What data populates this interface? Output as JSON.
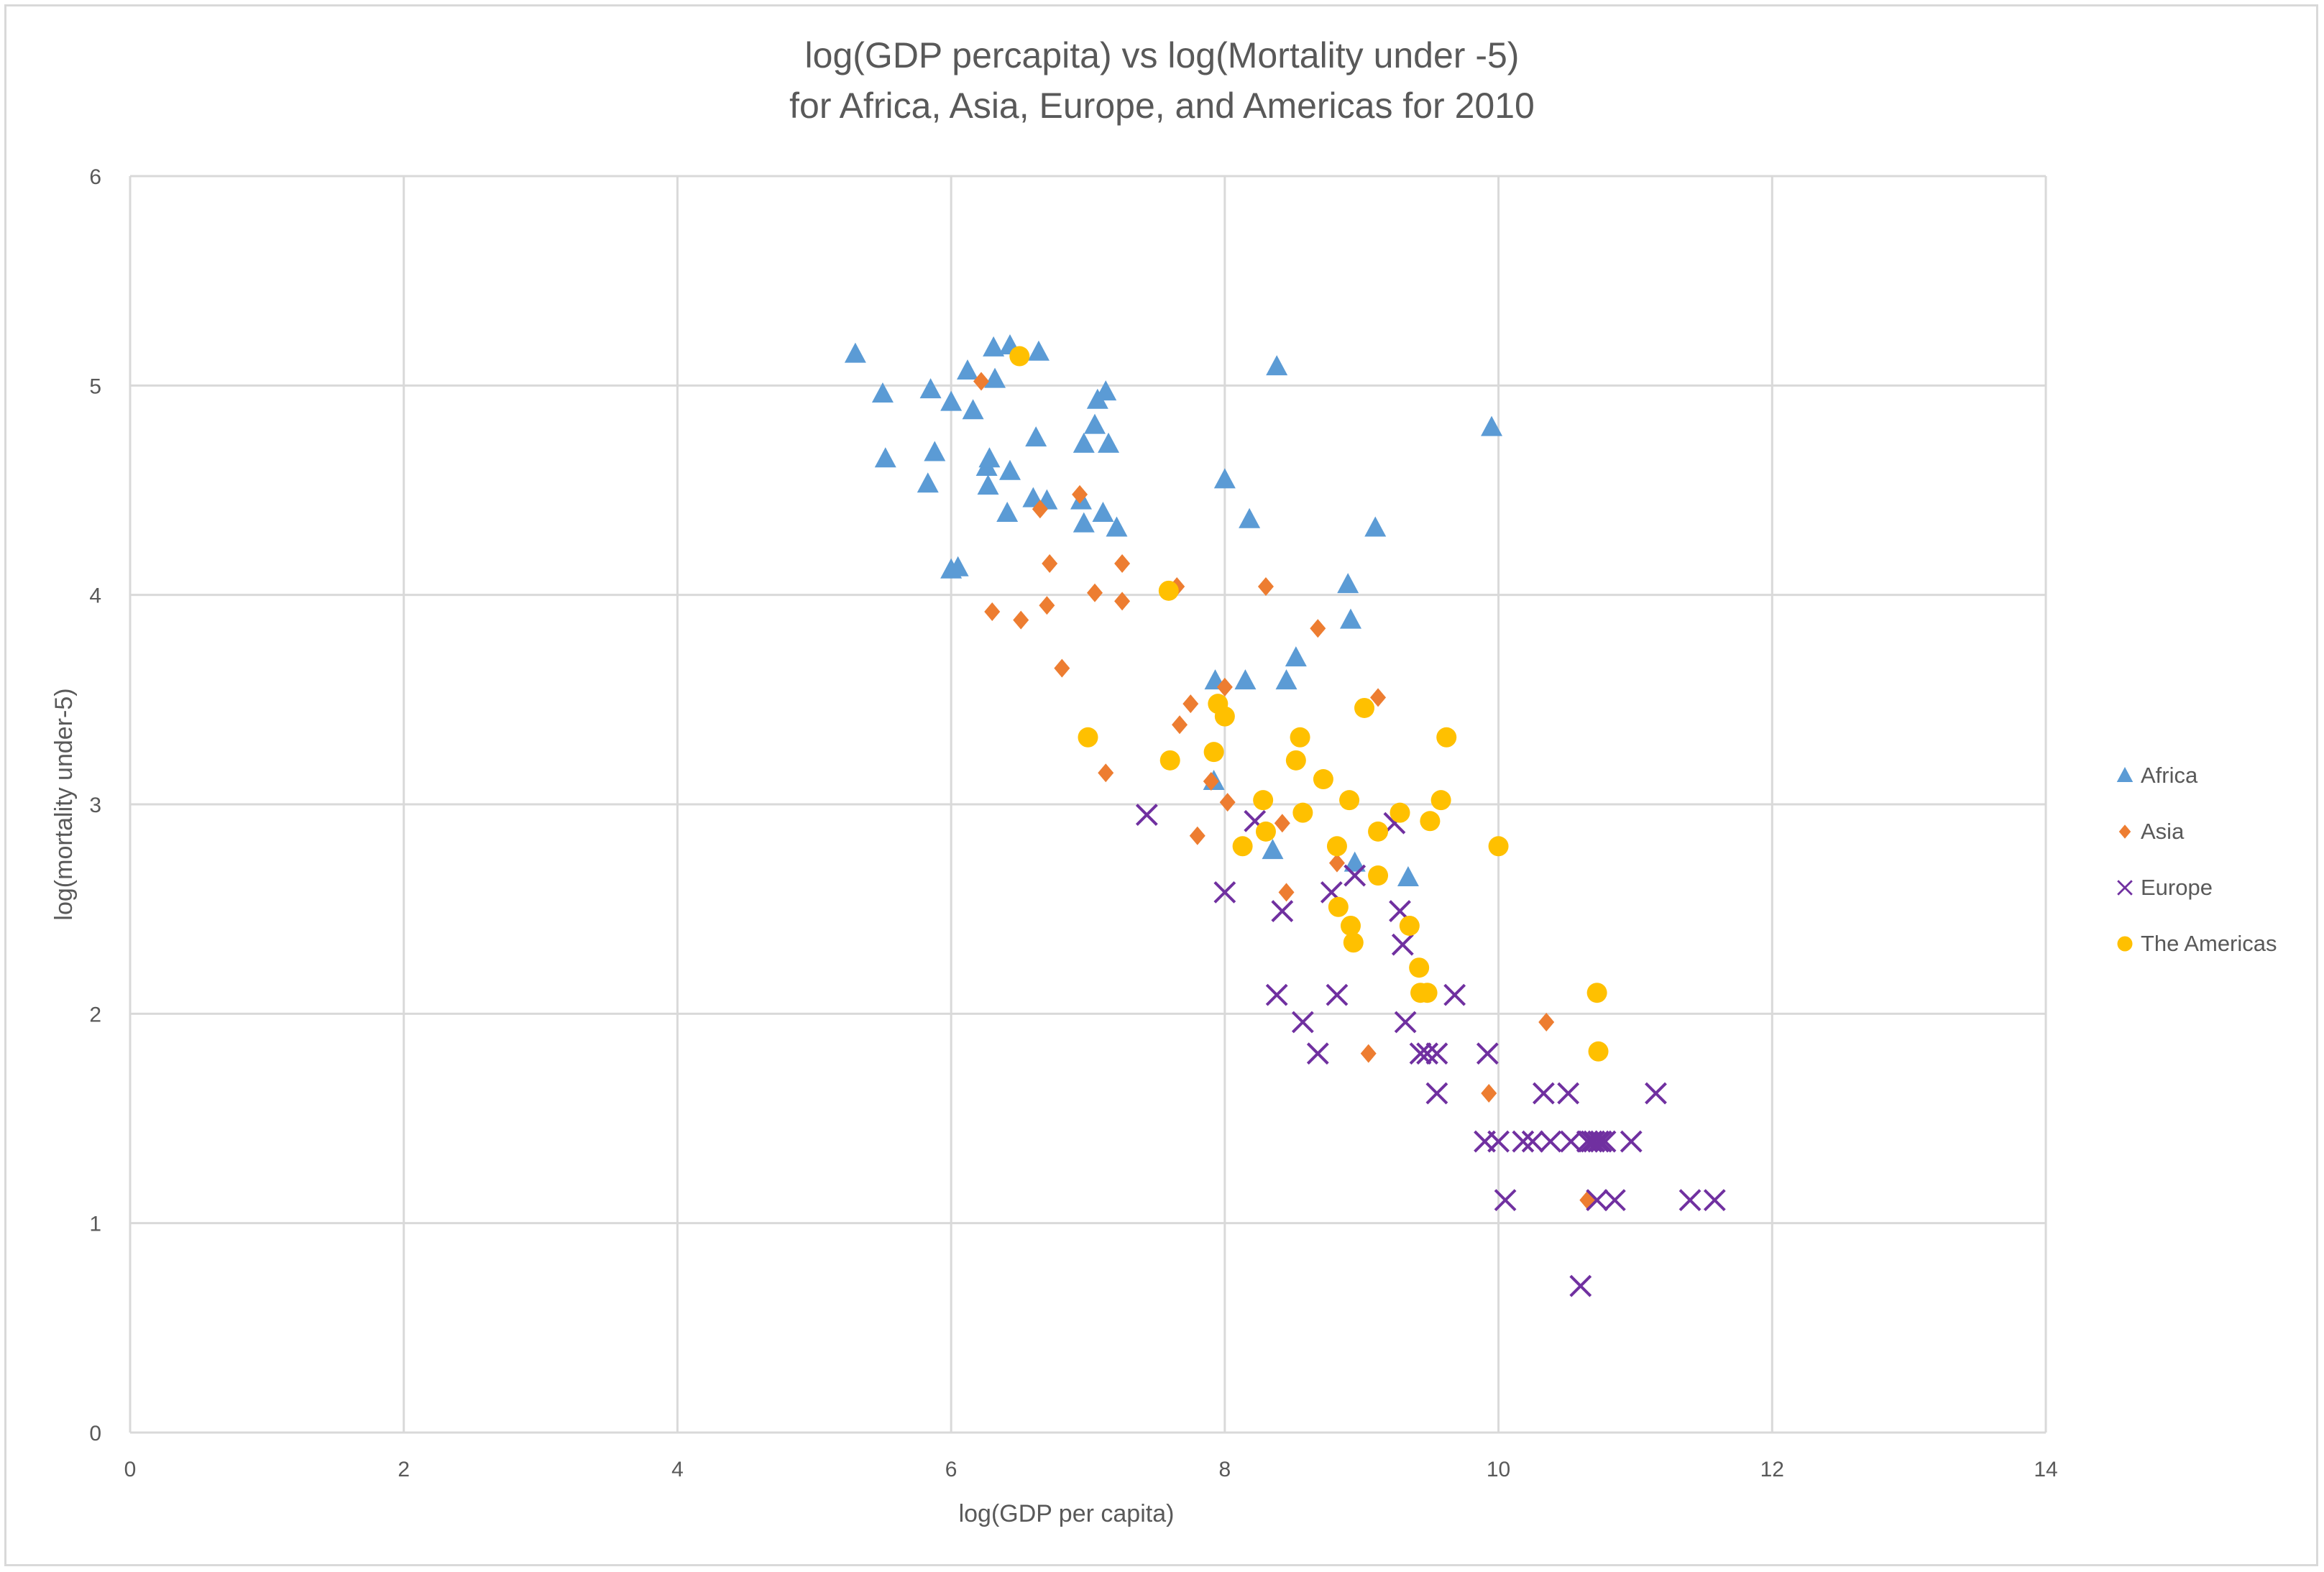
{
  "chart_data": {
    "type": "scatter",
    "title": "log(GDP percapita) vs log(Mortality under  -5)",
    "subtitle": "for Africa, Asia, Europe, and Americas for 2010",
    "xlabel": "log(GDP per capita)",
    "ylabel": "log(mortality under-5)",
    "xlim": [
      0,
      14
    ],
    "ylim": [
      0,
      6
    ],
    "xticks": [
      0,
      2,
      4,
      6,
      8,
      10,
      12,
      14
    ],
    "yticks": [
      0,
      1,
      2,
      3,
      4,
      5,
      6
    ],
    "grid": true,
    "legend_position": "right",
    "series": [
      {
        "name": "Africa",
        "marker": "triangle",
        "color": "#5b9bd5",
        "points": [
          [
            5.3,
            5.15
          ],
          [
            5.5,
            4.96
          ],
          [
            5.52,
            4.65
          ],
          [
            5.83,
            4.53
          ],
          [
            5.85,
            4.98
          ],
          [
            5.88,
            4.68
          ],
          [
            6.0,
            4.12
          ],
          [
            6.0,
            4.92
          ],
          [
            6.05,
            4.13
          ],
          [
            6.12,
            5.07
          ],
          [
            6.16,
            4.88
          ],
          [
            6.26,
            4.61
          ],
          [
            6.27,
            4.52
          ],
          [
            6.28,
            4.65
          ],
          [
            6.31,
            5.18
          ],
          [
            6.32,
            5.03
          ],
          [
            6.43,
            5.19
          ],
          [
            6.41,
            4.39
          ],
          [
            6.43,
            4.59
          ],
          [
            6.62,
            4.75
          ],
          [
            6.6,
            4.46
          ],
          [
            6.64,
            5.16
          ],
          [
            6.7,
            4.45
          ],
          [
            6.95,
            4.45
          ],
          [
            6.97,
            4.34
          ],
          [
            6.97,
            4.72
          ],
          [
            7.05,
            4.81
          ],
          [
            7.07,
            4.93
          ],
          [
            7.11,
            4.39
          ],
          [
            7.13,
            4.97
          ],
          [
            7.15,
            4.72
          ],
          [
            7.21,
            4.32
          ],
          [
            7.93,
            3.59
          ],
          [
            7.92,
            3.11
          ],
          [
            8.0,
            4.55
          ],
          [
            8.15,
            3.59
          ],
          [
            8.18,
            4.36
          ],
          [
            8.35,
            2.78
          ],
          [
            8.38,
            5.09
          ],
          [
            8.45,
            3.59
          ],
          [
            8.52,
            3.7
          ],
          [
            8.9,
            4.05
          ],
          [
            8.92,
            3.88
          ],
          [
            8.95,
            2.72
          ],
          [
            9.1,
            4.32
          ],
          [
            9.34,
            2.65
          ],
          [
            9.95,
            4.8
          ]
        ]
      },
      {
        "name": "Asia",
        "marker": "diamond",
        "color": "#ed7d31",
        "points": [
          [
            6.22,
            5.02
          ],
          [
            6.3,
            3.92
          ],
          [
            6.51,
            3.88
          ],
          [
            6.65,
            4.41
          ],
          [
            6.7,
            3.95
          ],
          [
            6.72,
            4.15
          ],
          [
            6.81,
            3.65
          ],
          [
            6.94,
            4.48
          ],
          [
            7.05,
            4.01
          ],
          [
            7.13,
            3.15
          ],
          [
            7.25,
            4.15
          ],
          [
            7.25,
            3.97
          ],
          [
            7.65,
            4.04
          ],
          [
            7.67,
            3.38
          ],
          [
            7.75,
            3.48
          ],
          [
            7.8,
            2.85
          ],
          [
            7.9,
            3.11
          ],
          [
            8.0,
            3.56
          ],
          [
            8.02,
            3.01
          ],
          [
            8.3,
            4.04
          ],
          [
            8.42,
            2.91
          ],
          [
            8.45,
            2.58
          ],
          [
            8.68,
            3.84
          ],
          [
            8.82,
            2.72
          ],
          [
            9.05,
            1.81
          ],
          [
            9.12,
            3.51
          ],
          [
            9.93,
            1.62
          ],
          [
            10.35,
            1.96
          ],
          [
            10.65,
            1.11
          ]
        ]
      },
      {
        "name": "Europe",
        "marker": "x",
        "color": "#7030a0",
        "points": [
          [
            7.43,
            2.95
          ],
          [
            8.0,
            2.58
          ],
          [
            8.22,
            2.92
          ],
          [
            8.38,
            2.09
          ],
          [
            8.42,
            2.49
          ],
          [
            8.57,
            1.96
          ],
          [
            8.68,
            1.81
          ],
          [
            8.78,
            2.58
          ],
          [
            8.82,
            2.09
          ],
          [
            8.95,
            2.66
          ],
          [
            9.24,
            2.91
          ],
          [
            9.28,
            2.49
          ],
          [
            9.3,
            2.33
          ],
          [
            9.32,
            1.96
          ],
          [
            9.43,
            1.81
          ],
          [
            9.48,
            1.81
          ],
          [
            9.55,
            1.81
          ],
          [
            9.55,
            1.62
          ],
          [
            9.68,
            2.09
          ],
          [
            9.9,
            1.39
          ],
          [
            9.92,
            1.81
          ],
          [
            10.0,
            1.39
          ],
          [
            10.05,
            1.11
          ],
          [
            10.18,
            1.39
          ],
          [
            10.25,
            1.39
          ],
          [
            10.33,
            1.62
          ],
          [
            10.38,
            1.39
          ],
          [
            10.51,
            1.62
          ],
          [
            10.53,
            1.39
          ],
          [
            10.6,
            0.7
          ],
          [
            10.65,
            1.39
          ],
          [
            10.68,
            1.39
          ],
          [
            10.7,
            1.39
          ],
          [
            10.72,
            1.11
          ],
          [
            10.73,
            1.39
          ],
          [
            10.75,
            1.39
          ],
          [
            10.78,
            1.39
          ],
          [
            10.85,
            1.11
          ],
          [
            10.97,
            1.39
          ],
          [
            11.15,
            1.62
          ],
          [
            11.4,
            1.11
          ],
          [
            11.58,
            1.11
          ]
        ]
      },
      {
        "name": "The Americas",
        "marker": "circle",
        "color": "#ffc000",
        "points": [
          [
            6.5,
            5.14
          ],
          [
            7.0,
            3.32
          ],
          [
            7.59,
            4.02
          ],
          [
            7.6,
            3.21
          ],
          [
            7.92,
            3.25
          ],
          [
            7.95,
            3.48
          ],
          [
            8.0,
            3.42
          ],
          [
            8.13,
            2.8
          ],
          [
            8.28,
            3.02
          ],
          [
            8.3,
            2.87
          ],
          [
            8.52,
            3.21
          ],
          [
            8.55,
            3.32
          ],
          [
            8.57,
            2.96
          ],
          [
            8.72,
            3.12
          ],
          [
            8.82,
            2.8
          ],
          [
            8.83,
            2.51
          ],
          [
            8.91,
            3.02
          ],
          [
            8.92,
            2.42
          ],
          [
            8.94,
            2.34
          ],
          [
            9.02,
            3.46
          ],
          [
            9.12,
            2.87
          ],
          [
            9.12,
            2.66
          ],
          [
            9.28,
            2.96
          ],
          [
            9.35,
            2.42
          ],
          [
            9.42,
            2.22
          ],
          [
            9.43,
            2.1
          ],
          [
            9.48,
            2.1
          ],
          [
            9.5,
            2.92
          ],
          [
            9.58,
            3.02
          ],
          [
            9.62,
            3.32
          ],
          [
            10.0,
            2.8
          ],
          [
            10.72,
            2.1
          ],
          [
            10.73,
            1.82
          ]
        ]
      }
    ]
  }
}
